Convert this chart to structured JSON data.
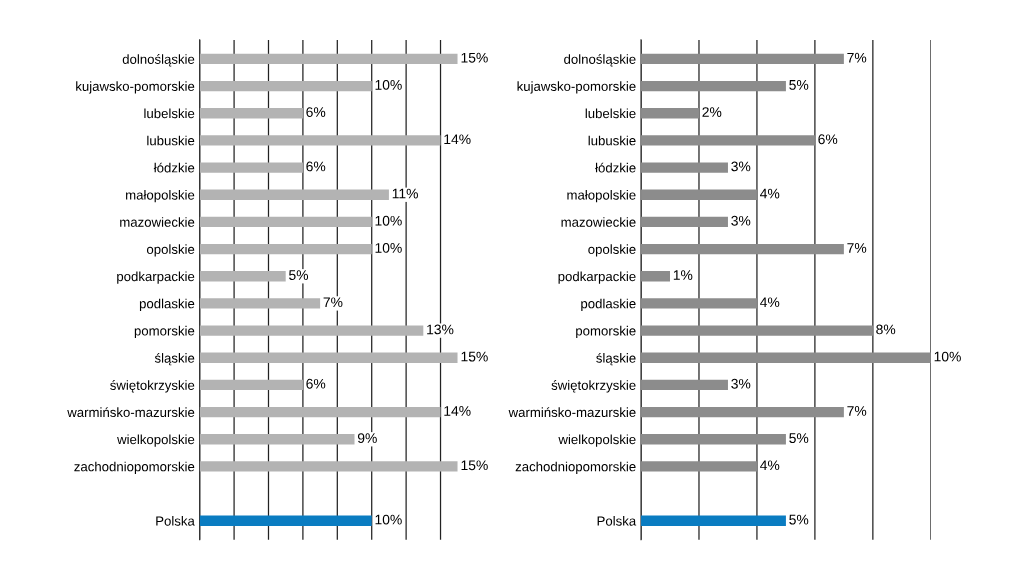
{
  "chart_data": [
    {
      "type": "bar",
      "orientation": "horizontal",
      "categories": [
        "dolnośląskie",
        "kujawsko-pomorskie",
        "lubelskie",
        "lubuskie",
        "łódzkie",
        "małopolskie",
        "mazowieckie",
        "opolskie",
        "podkarpackie",
        "podlaskie",
        "pomorskie",
        "śląskie",
        "świętokrzyskie",
        "warmińsko-mazurskie",
        "wielkopolskie",
        "zachodniopomorskie",
        null,
        "Polska"
      ],
      "values": [
        15,
        10,
        6,
        14,
        6,
        11,
        10,
        10,
        5,
        7,
        13,
        15,
        6,
        14,
        9,
        15,
        null,
        10
      ],
      "colors": [
        "#b3b3b3",
        "#b3b3b3",
        "#b3b3b3",
        "#b3b3b3",
        "#b3b3b3",
        "#b3b3b3",
        "#b3b3b3",
        "#b3b3b3",
        "#b3b3b3",
        "#b3b3b3",
        "#b3b3b3",
        "#b3b3b3",
        "#b3b3b3",
        "#b3b3b3",
        "#b3b3b3",
        "#b3b3b3",
        "#b3b3b3",
        "#0a7cc1"
      ],
      "value_labels": [
        "15%",
        "10%",
        "6%",
        "14%",
        "6%",
        "11%",
        "10%",
        "10%",
        "5%",
        "7%",
        "13%",
        "15%",
        "6%",
        "14%",
        "9%",
        "15%",
        null,
        "10%"
      ],
      "xlim": [
        0,
        15
      ],
      "xticks": [
        {
          "value": 0,
          "label": null
        },
        {
          "value": 2,
          "label": null
        },
        {
          "value": 4,
          "label": null
        },
        {
          "value": 6,
          "label": null
        },
        {
          "value": 8,
          "label": null
        },
        {
          "value": 10,
          "label": null
        },
        {
          "value": 12,
          "label": null
        },
        {
          "value": 14,
          "label": null
        }
      ],
      "tick_labels": "y",
      "grid": "x",
      "legend": false
    },
    {
      "type": "bar",
      "orientation": "horizontal",
      "categories": [
        "dolnośląskie",
        "kujawsko-pomorskie",
        "lubelskie",
        "lubuskie",
        "łódzkie",
        "małopolskie",
        "mazowieckie",
        "opolskie",
        "podkarpackie",
        "podlaskie",
        "pomorskie",
        "śląskie",
        "świętokrzyskie",
        "warmińsko-mazurskie",
        "wielkopolskie",
        "zachodniopomorskie",
        null,
        "Polska"
      ],
      "values": [
        7,
        5,
        2,
        6,
        3,
        4,
        3,
        7,
        1,
        4,
        8,
        10,
        3,
        7,
        5,
        4,
        null,
        5
      ],
      "colors": [
        "#8c8c8c",
        "#8c8c8c",
        "#8c8c8c",
        "#8c8c8c",
        "#8c8c8c",
        "#8c8c8c",
        "#8c8c8c",
        "#8c8c8c",
        "#8c8c8c",
        "#8c8c8c",
        "#8c8c8c",
        "#8c8c8c",
        "#8c8c8c",
        "#8c8c8c",
        "#8c8c8c",
        "#8c8c8c",
        "#8c8c8c",
        "#0a7cc1"
      ],
      "value_labels": [
        "7%",
        "5%",
        "2%",
        "6%",
        "3%",
        "4%",
        "3%",
        "7%",
        "1%",
        "4%",
        "8%",
        "10%",
        "3%",
        "7%",
        "5%",
        "4%",
        null,
        "5%"
      ],
      "xlim": [
        0,
        10
      ],
      "xticks": [
        {
          "value": 0,
          "label": null
        },
        {
          "value": 2,
          "label": null
        },
        {
          "value": 4,
          "label": null
        },
        {
          "value": 6,
          "label": null
        },
        {
          "value": 8,
          "label": null
        },
        {
          "value": 10,
          "label": null
        }
      ],
      "tick_labels": "y",
      "grid": "x",
      "legend": false
    }
  ]
}
